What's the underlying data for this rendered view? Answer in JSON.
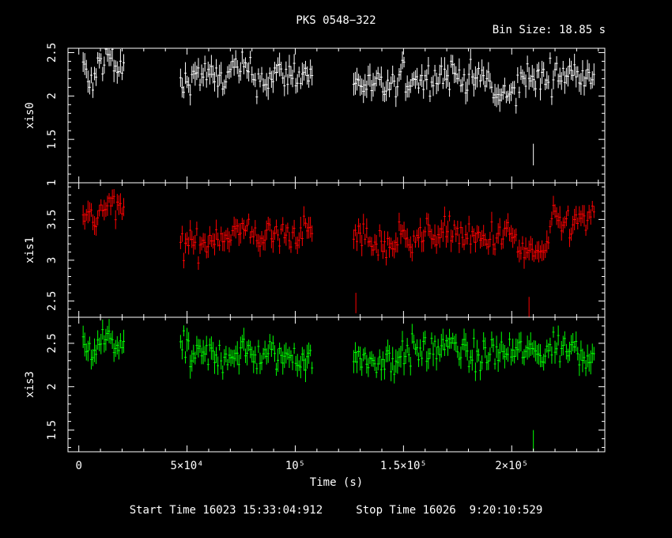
{
  "header": {
    "title": "PKS 0548−322",
    "bin_size": "Bin Size: 18.85 s"
  },
  "footer": {
    "text": "Start Time 16023 15:33:04:912     Stop Time 16026  9:20:10:529"
  },
  "chart_data": {
    "type": "line",
    "xlabel": "Time (s)",
    "xlim": [
      -5000,
      243000
    ],
    "x_tick_labels": [
      "0",
      "5×10⁴",
      "10⁵",
      "1.5×10⁵",
      "2×10⁵"
    ],
    "x_tick_values": [
      0,
      50000,
      100000,
      150000,
      200000
    ],
    "segments": [
      [
        2000,
        21000
      ],
      [
        47000,
        108000
      ],
      [
        127000,
        238000
      ]
    ],
    "panels": [
      {
        "name": "xis0",
        "ylabel": "xis0",
        "color": "#ffffff",
        "ylim": [
          1.0,
          2.55
        ],
        "y_ticks": [
          1,
          1.5,
          2,
          2.5
        ],
        "y_tick_labels": [
          "1",
          "1.5",
          "2",
          "2.5"
        ],
        "segment_means": [
          2.28,
          2.2,
          2.2
        ],
        "approx_values": [
          [
            2000,
            2.3
          ],
          [
            6000,
            2.15
          ],
          [
            10000,
            2.4
          ],
          [
            14000,
            2.45
          ],
          [
            18000,
            2.3
          ],
          [
            47000,
            2.15
          ],
          [
            55000,
            2.25
          ],
          [
            65000,
            2.2
          ],
          [
            75000,
            2.3
          ],
          [
            85000,
            2.2
          ],
          [
            95000,
            2.25
          ],
          [
            105000,
            2.25
          ],
          [
            127000,
            2.15
          ],
          [
            140000,
            2.1
          ],
          [
            155000,
            2.2
          ],
          [
            170000,
            2.25
          ],
          [
            185000,
            2.2
          ],
          [
            195000,
            2.0
          ],
          [
            210000,
            2.2
          ],
          [
            225000,
            2.25
          ],
          [
            236000,
            2.3
          ]
        ],
        "outliers": [
          [
            210000,
            1.25
          ]
        ]
      },
      {
        "name": "xis1",
        "ylabel": "xis1",
        "color": "#ff0000",
        "ylim": [
          2.3,
          3.95
        ],
        "y_ticks": [
          2.5,
          3,
          3.5
        ],
        "y_tick_labels": [
          "2.5",
          "3",
          "3.5"
        ],
        "segment_means": [
          3.55,
          3.25,
          3.28
        ],
        "approx_values": [
          [
            2000,
            3.5
          ],
          [
            6000,
            3.5
          ],
          [
            10000,
            3.6
          ],
          [
            14000,
            3.7
          ],
          [
            18000,
            3.6
          ],
          [
            47000,
            3.2
          ],
          [
            55000,
            3.2
          ],
          [
            65000,
            3.3
          ],
          [
            75000,
            3.35
          ],
          [
            85000,
            3.3
          ],
          [
            95000,
            3.3
          ],
          [
            105000,
            3.35
          ],
          [
            127000,
            3.3
          ],
          [
            140000,
            3.2
          ],
          [
            155000,
            3.3
          ],
          [
            170000,
            3.35
          ],
          [
            185000,
            3.25
          ],
          [
            195000,
            3.3
          ],
          [
            210000,
            3.1
          ],
          [
            225000,
            3.45
          ],
          [
            236000,
            3.5
          ]
        ],
        "outliers": [
          [
            128000,
            2.4
          ],
          [
            208000,
            2.35
          ]
        ]
      },
      {
        "name": "xis3",
        "ylabel": "xis3",
        "color": "#00ff00",
        "ylim": [
          1.25,
          2.8
        ],
        "y_ticks": [
          1.5,
          2,
          2.5
        ],
        "y_tick_labels": [
          "1.5",
          "2",
          "2.5"
        ],
        "segment_means": [
          2.48,
          2.35,
          2.38
        ],
        "approx_values": [
          [
            2000,
            2.45
          ],
          [
            6000,
            2.4
          ],
          [
            10000,
            2.5
          ],
          [
            14000,
            2.55
          ],
          [
            18000,
            2.5
          ],
          [
            47000,
            2.4
          ],
          [
            55000,
            2.35
          ],
          [
            65000,
            2.35
          ],
          [
            75000,
            2.4
          ],
          [
            85000,
            2.35
          ],
          [
            95000,
            2.35
          ],
          [
            105000,
            2.35
          ],
          [
            127000,
            2.3
          ],
          [
            140000,
            2.3
          ],
          [
            155000,
            2.4
          ],
          [
            170000,
            2.45
          ],
          [
            185000,
            2.35
          ],
          [
            195000,
            2.4
          ],
          [
            210000,
            2.4
          ],
          [
            225000,
            2.45
          ],
          [
            236000,
            2.4
          ]
        ],
        "outliers": [
          [
            210000,
            1.3
          ]
        ]
      }
    ]
  }
}
